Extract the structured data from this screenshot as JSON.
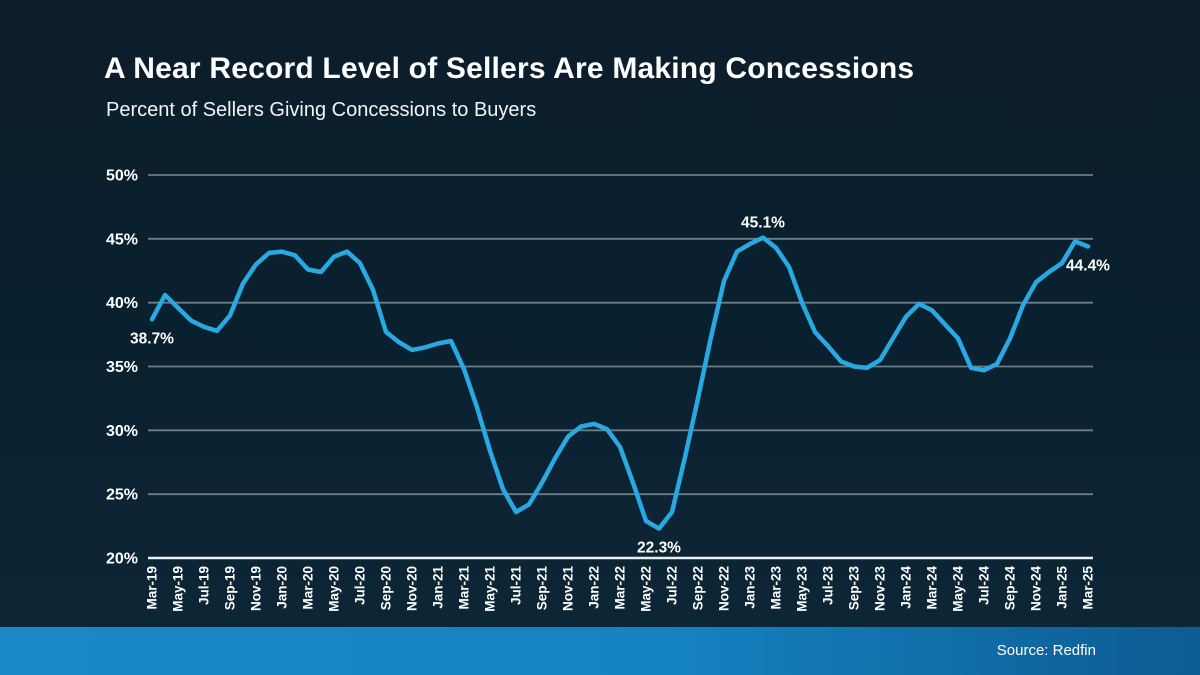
{
  "slide": {
    "title": "A Near Record Level of Sellers Are Making Concessions",
    "subtitle": "Percent of Sellers Giving Concessions to Buyers",
    "source_label": "Source: Redfin"
  },
  "colors": {
    "line": "#28a9e2",
    "gridline": "#6f7d88",
    "axis_line": "#e9eef2",
    "text": "#ffffff",
    "background_top": "#0d1e2b",
    "background_bottom": "#0e2737",
    "footer_left": "#1a88c6",
    "footer_right": "#0d5b91"
  },
  "chart_data": {
    "type": "line",
    "title": "A Near Record Level of Sellers Are Making Concessions",
    "subtitle": "Percent of Sellers Giving Concessions to Buyers",
    "xlabel": "",
    "ylabel": "",
    "ylim": [
      20,
      50
    ],
    "yticks": [
      20,
      25,
      30,
      35,
      40,
      45,
      50
    ],
    "ytick_suffix": "%",
    "x_tick_every": 2,
    "grid": true,
    "legend": false,
    "x": [
      "Mar-19",
      "Apr-19",
      "May-19",
      "Jun-19",
      "Jul-19",
      "Aug-19",
      "Sep-19",
      "Oct-19",
      "Nov-19",
      "Dec-19",
      "Jan-20",
      "Feb-20",
      "Mar-20",
      "Apr-20",
      "May-20",
      "Jun-20",
      "Jul-20",
      "Aug-20",
      "Sep-20",
      "Oct-20",
      "Nov-20",
      "Dec-20",
      "Jan-21",
      "Feb-21",
      "Mar-21",
      "Apr-21",
      "May-21",
      "Jun-21",
      "Jul-21",
      "Aug-21",
      "Sep-21",
      "Oct-21",
      "Nov-21",
      "Dec-21",
      "Jan-22",
      "Feb-22",
      "Mar-22",
      "Apr-22",
      "May-22",
      "Jun-22",
      "Jul-22",
      "Aug-22",
      "Sep-22",
      "Oct-22",
      "Nov-22",
      "Dec-22",
      "Jan-23",
      "Feb-23",
      "Mar-23",
      "Apr-23",
      "May-23",
      "Jun-23",
      "Jul-23",
      "Aug-23",
      "Sep-23",
      "Oct-23",
      "Nov-23",
      "Dec-23",
      "Jan-24",
      "Feb-24",
      "Mar-24",
      "Apr-24",
      "May-24",
      "Jun-24",
      "Jul-24",
      "Aug-24",
      "Sep-24",
      "Oct-24",
      "Nov-24",
      "Dec-24",
      "Jan-25",
      "Feb-25",
      "Mar-25"
    ],
    "values": [
      38.7,
      40.6,
      39.6,
      38.6,
      38.1,
      37.8,
      39.0,
      41.5,
      43.0,
      43.9,
      44.0,
      43.7,
      42.6,
      42.4,
      43.6,
      44.0,
      43.1,
      41.0,
      37.7,
      36.9,
      36.3,
      36.5,
      36.8,
      37.0,
      34.8,
      31.8,
      28.4,
      25.4,
      23.6,
      24.2,
      25.9,
      27.8,
      29.5,
      30.3,
      30.5,
      30.1,
      28.7,
      25.9,
      22.9,
      22.3,
      23.6,
      27.9,
      32.5,
      37.3,
      41.7,
      44.0,
      44.6,
      45.1,
      44.3,
      42.8,
      40.0,
      37.7,
      36.6,
      35.4,
      35.0,
      34.9,
      35.5,
      37.2,
      38.9,
      39.9,
      39.4,
      38.3,
      37.2,
      34.9,
      34.7,
      35.2,
      37.2,
      39.8,
      41.6,
      42.4,
      43.1,
      44.8,
      44.4
    ],
    "annotations": [
      {
        "x": "Mar-19",
        "value": 38.7,
        "text": "38.7%",
        "position": "below"
      },
      {
        "x": "Jun-22",
        "value": 22.3,
        "text": "22.3%",
        "position": "below"
      },
      {
        "x": "Feb-23",
        "value": 45.1,
        "text": "45.1%",
        "position": "above"
      },
      {
        "x": "Mar-25",
        "value": 44.4,
        "text": "44.4%",
        "position": "below"
      }
    ]
  }
}
